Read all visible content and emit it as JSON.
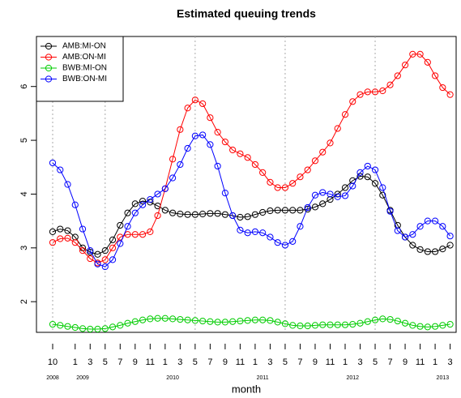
{
  "chart_data": {
    "type": "line",
    "title": "Estimated queuing trends",
    "x_label": "month",
    "xlim": [
      -2.16,
      53.8
    ],
    "ylim": [
      1.43,
      6.93
    ],
    "yticks": [
      2,
      3,
      4,
      5,
      6
    ],
    "xticks": [
      {
        "value": 0,
        "label": "10"
      },
      {
        "value": 3,
        "label": "1"
      },
      {
        "value": 5,
        "label": "3"
      },
      {
        "value": 7,
        "label": "5"
      },
      {
        "value": 9,
        "label": "7"
      },
      {
        "value": 11,
        "label": "9"
      },
      {
        "value": 13,
        "label": "11"
      },
      {
        "value": 15,
        "label": "1"
      },
      {
        "value": 17,
        "label": "3"
      },
      {
        "value": 19,
        "label": "5"
      },
      {
        "value": 21,
        "label": "7"
      },
      {
        "value": 23,
        "label": "9"
      },
      {
        "value": 25,
        "label": "11"
      },
      {
        "value": 27,
        "label": "1"
      },
      {
        "value": 29,
        "label": "3"
      },
      {
        "value": 31,
        "label": "5"
      },
      {
        "value": 33,
        "label": "7"
      },
      {
        "value": 35,
        "label": "9"
      },
      {
        "value": 37,
        "label": "11"
      },
      {
        "value": 39,
        "label": "1"
      },
      {
        "value": 41,
        "label": "3"
      },
      {
        "value": 43,
        "label": "5"
      },
      {
        "value": 45,
        "label": "7"
      },
      {
        "value": 47,
        "label": "9"
      },
      {
        "value": 49,
        "label": "11"
      },
      {
        "value": 51,
        "label": "1"
      },
      {
        "value": 53,
        "label": "3"
      }
    ],
    "year_ticks": [
      {
        "value": 0,
        "label": "2008"
      },
      {
        "value": 4,
        "label": "2009"
      },
      {
        "value": 16,
        "label": "2010"
      },
      {
        "value": 28,
        "label": "2011"
      },
      {
        "value": 40,
        "label": "2012"
      },
      {
        "value": 52,
        "label": "2013"
      }
    ],
    "legend": "top-left",
    "series": [
      {
        "name": "AMB:MI-ON",
        "color": "#000000",
        "values": [
          3.3,
          3.35,
          3.32,
          3.2,
          3.0,
          2.92,
          2.88,
          2.95,
          3.15,
          3.42,
          3.65,
          3.82,
          3.87,
          3.85,
          3.78,
          3.7,
          3.65,
          3.63,
          3.62,
          3.62,
          3.63,
          3.64,
          3.64,
          3.62,
          3.6,
          3.57,
          3.58,
          3.62,
          3.66,
          3.69,
          3.7,
          3.7,
          3.7,
          3.7,
          3.72,
          3.76,
          3.82,
          3.9,
          4.0,
          4.12,
          4.25,
          4.33,
          4.32,
          4.2,
          3.98,
          3.7,
          3.42,
          3.2,
          3.05,
          2.97,
          2.93,
          2.93,
          2.98,
          3.05
        ]
      },
      {
        "name": "AMB:ON-MI",
        "color": "#ff0000",
        "values": [
          3.1,
          3.17,
          3.18,
          3.1,
          2.95,
          2.8,
          2.72,
          2.78,
          3.0,
          3.2,
          3.25,
          3.25,
          3.25,
          3.3,
          3.6,
          4.1,
          4.65,
          5.2,
          5.6,
          5.75,
          5.68,
          5.42,
          5.15,
          4.97,
          4.82,
          4.75,
          4.68,
          4.55,
          4.4,
          4.22,
          4.12,
          4.12,
          4.2,
          4.32,
          4.45,
          4.62,
          4.78,
          4.95,
          5.22,
          5.48,
          5.72,
          5.85,
          5.9,
          5.9,
          5.92,
          6.03,
          6.2,
          6.4,
          6.6,
          6.6,
          6.45,
          6.2,
          5.98,
          5.85
        ]
      },
      {
        "name": "BWB:MI-ON",
        "color": "#00cc00",
        "values": [
          1.58,
          1.56,
          1.54,
          1.52,
          1.5,
          1.49,
          1.49,
          1.5,
          1.53,
          1.56,
          1.6,
          1.63,
          1.66,
          1.68,
          1.69,
          1.69,
          1.68,
          1.67,
          1.66,
          1.65,
          1.64,
          1.63,
          1.62,
          1.62,
          1.63,
          1.64,
          1.65,
          1.66,
          1.66,
          1.65,
          1.62,
          1.59,
          1.56,
          1.55,
          1.55,
          1.56,
          1.57,
          1.57,
          1.57,
          1.57,
          1.58,
          1.6,
          1.63,
          1.66,
          1.68,
          1.67,
          1.64,
          1.6,
          1.56,
          1.54,
          1.53,
          1.54,
          1.56,
          1.58
        ]
      },
      {
        "name": "BWB:ON-MI",
        "color": "#0000ff",
        "values": [
          4.58,
          4.45,
          4.18,
          3.8,
          3.35,
          2.95,
          2.7,
          2.65,
          2.78,
          3.08,
          3.4,
          3.65,
          3.8,
          3.9,
          4.0,
          4.1,
          4.3,
          4.55,
          4.85,
          5.08,
          5.1,
          4.92,
          4.52,
          4.02,
          3.6,
          3.33,
          3.28,
          3.3,
          3.28,
          3.2,
          3.1,
          3.05,
          3.12,
          3.4,
          3.75,
          3.98,
          4.03,
          4.0,
          3.95,
          3.97,
          4.15,
          4.4,
          4.52,
          4.45,
          4.12,
          3.68,
          3.32,
          3.2,
          3.25,
          3.4,
          3.5,
          3.5,
          3.4,
          3.22
        ]
      }
    ]
  }
}
